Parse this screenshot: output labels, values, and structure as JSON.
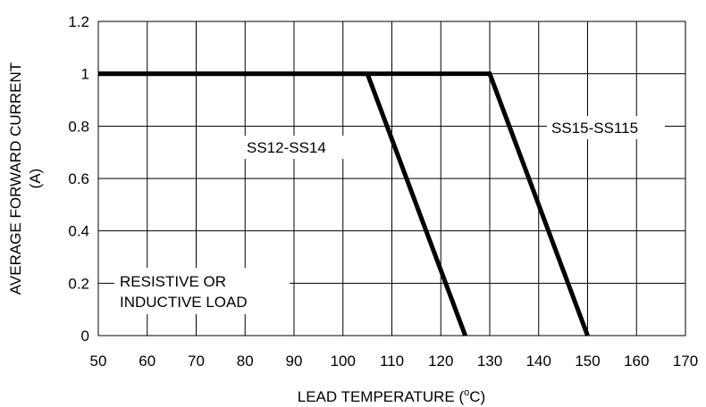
{
  "chart_data": {
    "type": "line",
    "title": "",
    "xlabel": "LEAD TEMPERATURE (",
    "xlabel_sup": "o",
    "xlabel_suffix": "C)",
    "ylabel_line1": "AVERAGE FORWARD CURRENT",
    "ylabel_line2": "(A)",
    "xlim": [
      50,
      170
    ],
    "ylim": [
      0,
      1.2
    ],
    "grid": true,
    "x_ticks": [
      50,
      60,
      70,
      80,
      90,
      100,
      110,
      120,
      130,
      140,
      150,
      160,
      170
    ],
    "y_ticks": [
      0,
      0.2,
      0.4,
      0.6,
      0.8,
      1,
      1.2
    ],
    "y_tick_labels": [
      "0",
      "0.2",
      "0.4",
      "0.6",
      "0.8",
      "1",
      "1.2"
    ],
    "series": [
      {
        "name": "SS12-SS14",
        "x": [
          50,
          105,
          125
        ],
        "y": [
          1,
          1,
          0
        ]
      },
      {
        "name": "SS15-SS115",
        "x": [
          50,
          130,
          150
        ],
        "y": [
          1,
          1,
          0
        ]
      }
    ],
    "annotations": {
      "series1_label": "SS12-SS14",
      "series2_label": "SS15-SS115",
      "load_line1": "RESISTIVE OR",
      "load_line2": "INDUCTIVE LOAD"
    }
  }
}
